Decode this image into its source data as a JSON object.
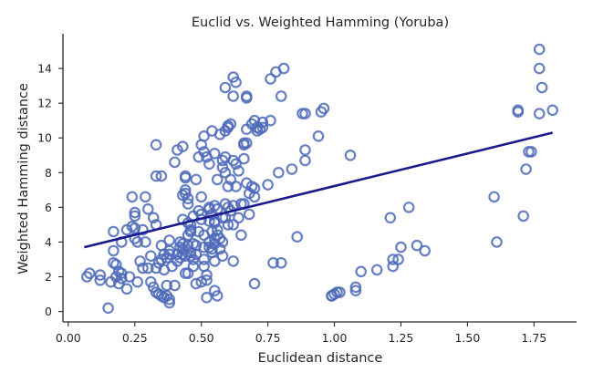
{
  "chart_data": {
    "type": "scatter",
    "title": "Euclid vs. Weighted Hamming (Yoruba)",
    "xlabel": "Euclidean distance",
    "ylabel": "Weighted Hamming distance",
    "xlim": [
      -0.02,
      1.91
    ],
    "ylim": [
      -0.6,
      16.0
    ],
    "xticks": [
      0.0,
      0.25,
      0.5,
      0.75,
      1.0,
      1.25,
      1.5,
      1.75
    ],
    "xtick_labels": [
      "0.00",
      "0.25",
      "0.50",
      "0.75",
      "1.00",
      "1.25",
      "1.50",
      "1.75"
    ],
    "yticks": [
      0,
      2,
      4,
      6,
      8,
      10,
      12,
      14
    ],
    "ytick_labels": [
      "0",
      "2",
      "4",
      "6",
      "8",
      "10",
      "12",
      "14"
    ],
    "grid": false,
    "point_color": "#4c68b8",
    "line_color": "#1a1a8c",
    "points": [
      [
        0.07,
        2.0
      ],
      [
        0.08,
        2.2
      ],
      [
        0.12,
        1.8
      ],
      [
        0.12,
        2.1
      ],
      [
        0.15,
        0.2
      ],
      [
        0.16,
        1.7
      ],
      [
        0.17,
        4.6
      ],
      [
        0.17,
        3.5
      ],
      [
        0.17,
        2.8
      ],
      [
        0.18,
        2.7
      ],
      [
        0.18,
        2.0
      ],
      [
        0.19,
        1.6
      ],
      [
        0.19,
        2.3
      ],
      [
        0.2,
        2.2
      ],
      [
        0.2,
        4.0
      ],
      [
        0.2,
        1.9
      ],
      [
        0.22,
        4.7
      ],
      [
        0.22,
        1.3
      ],
      [
        0.23,
        2.0
      ],
      [
        0.24,
        4.9
      ],
      [
        0.24,
        6.6
      ],
      [
        0.25,
        5.7
      ],
      [
        0.25,
        5.5
      ],
      [
        0.25,
        4.2
      ],
      [
        0.25,
        4.8
      ],
      [
        0.26,
        4.0
      ],
      [
        0.26,
        1.7
      ],
      [
        0.27,
        2.9
      ],
      [
        0.28,
        4.7
      ],
      [
        0.28,
        2.5
      ],
      [
        0.29,
        6.6
      ],
      [
        0.29,
        4.0
      ],
      [
        0.3,
        5.9
      ],
      [
        0.3,
        2.5
      ],
      [
        0.31,
        1.7
      ],
      [
        0.31,
        3.2
      ],
      [
        0.32,
        5.4
      ],
      [
        0.32,
        1.4
      ],
      [
        0.33,
        2.5
      ],
      [
        0.33,
        5.0
      ],
      [
        0.33,
        9.6
      ],
      [
        0.33,
        7.8
      ],
      [
        0.33,
        1.1
      ],
      [
        0.34,
        1.0
      ],
      [
        0.34,
        2.8
      ],
      [
        0.35,
        3.0
      ],
      [
        0.35,
        7.8
      ],
      [
        0.35,
        0.9
      ],
      [
        0.35,
        3.8
      ],
      [
        0.36,
        2.4
      ],
      [
        0.36,
        3.3
      ],
      [
        0.36,
        0.8
      ],
      [
        0.37,
        1.5
      ],
      [
        0.37,
        0.9
      ],
      [
        0.37,
        3.1
      ],
      [
        0.38,
        3.3
      ],
      [
        0.38,
        3.5
      ],
      [
        0.38,
        4.1
      ],
      [
        0.38,
        0.5
      ],
      [
        0.38,
        0.7
      ],
      [
        0.39,
        2.6
      ],
      [
        0.4,
        1.5
      ],
      [
        0.4,
        8.6
      ],
      [
        0.41,
        9.3
      ],
      [
        0.41,
        3.3
      ],
      [
        0.41,
        2.9
      ],
      [
        0.42,
        3.7
      ],
      [
        0.42,
        3.1
      ],
      [
        0.42,
        4.0
      ],
      [
        0.43,
        9.5
      ],
      [
        0.43,
        6.7
      ],
      [
        0.43,
        3.9
      ],
      [
        0.43,
        5.3
      ],
      [
        0.43,
        3.3
      ],
      [
        0.43,
        3.6
      ],
      [
        0.44,
        2.2
      ],
      [
        0.44,
        3.2
      ],
      [
        0.44,
        7.0
      ],
      [
        0.44,
        7.8
      ],
      [
        0.44,
        7.7
      ],
      [
        0.44,
        6.8
      ],
      [
        0.45,
        2.2
      ],
      [
        0.45,
        6.5
      ],
      [
        0.45,
        6.2
      ],
      [
        0.45,
        4.4
      ],
      [
        0.45,
        5.1
      ],
      [
        0.45,
        3.8
      ],
      [
        0.46,
        5.0
      ],
      [
        0.46,
        3.4
      ],
      [
        0.46,
        4.6
      ],
      [
        0.46,
        3.2
      ],
      [
        0.46,
        4.7
      ],
      [
        0.47,
        5.5
      ],
      [
        0.47,
        3.9
      ],
      [
        0.47,
        2.6
      ],
      [
        0.47,
        3.0
      ],
      [
        0.48,
        7.6
      ],
      [
        0.48,
        3.8
      ],
      [
        0.48,
        1.6
      ],
      [
        0.48,
        3.3
      ],
      [
        0.49,
        8.9
      ],
      [
        0.49,
        5.8
      ],
      [
        0.49,
        4.6
      ],
      [
        0.5,
        5.6
      ],
      [
        0.5,
        1.7
      ],
      [
        0.5,
        6.6
      ],
      [
        0.5,
        9.6
      ],
      [
        0.5,
        5.3
      ],
      [
        0.51,
        3.7
      ],
      [
        0.51,
        2.6
      ],
      [
        0.51,
        10.1
      ],
      [
        0.51,
        9.2
      ],
      [
        0.51,
        4.4
      ],
      [
        0.51,
        3.0
      ],
      [
        0.52,
        2.1
      ],
      [
        0.52,
        1.8
      ],
      [
        0.52,
        8.9
      ],
      [
        0.52,
        0.8
      ],
      [
        0.53,
        5.2
      ],
      [
        0.53,
        5.9
      ],
      [
        0.53,
        3.7
      ],
      [
        0.53,
        4.0
      ],
      [
        0.53,
        6.0
      ],
      [
        0.53,
        8.5
      ],
      [
        0.54,
        10.4
      ],
      [
        0.54,
        4.6
      ],
      [
        0.54,
        3.4
      ],
      [
        0.54,
        3.6
      ],
      [
        0.54,
        5.6
      ],
      [
        0.55,
        5.1
      ],
      [
        0.55,
        9.1
      ],
      [
        0.55,
        1.2
      ],
      [
        0.55,
        3.9
      ],
      [
        0.55,
        5.2
      ],
      [
        0.55,
        4.2
      ],
      [
        0.55,
        2.9
      ],
      [
        0.55,
        6.1
      ],
      [
        0.56,
        4.4
      ],
      [
        0.56,
        7.6
      ],
      [
        0.56,
        5.9
      ],
      [
        0.56,
        4.7
      ],
      [
        0.56,
        0.9
      ],
      [
        0.57,
        3.6
      ],
      [
        0.57,
        4.2
      ],
      [
        0.57,
        10.2
      ],
      [
        0.58,
        8.7
      ],
      [
        0.58,
        8.3
      ],
      [
        0.58,
        5.4
      ],
      [
        0.58,
        3.2
      ],
      [
        0.58,
        4.0
      ],
      [
        0.59,
        6.2
      ],
      [
        0.59,
        10.4
      ],
      [
        0.59,
        12.9
      ],
      [
        0.59,
        8.9
      ],
      [
        0.59,
        8.0
      ],
      [
        0.59,
        5.4
      ],
      [
        0.6,
        7.2
      ],
      [
        0.6,
        5.0
      ],
      [
        0.6,
        10.6
      ],
      [
        0.6,
        10.7
      ],
      [
        0.6,
        6.0
      ],
      [
        0.61,
        7.6
      ],
      [
        0.61,
        10.8
      ],
      [
        0.61,
        5.8
      ],
      [
        0.62,
        8.7
      ],
      [
        0.62,
        12.4
      ],
      [
        0.62,
        5.0
      ],
      [
        0.62,
        2.9
      ],
      [
        0.62,
        6.1
      ],
      [
        0.62,
        13.5
      ],
      [
        0.63,
        13.2
      ],
      [
        0.63,
        8.5
      ],
      [
        0.63,
        7.2
      ],
      [
        0.64,
        5.4
      ],
      [
        0.64,
        8.1
      ],
      [
        0.65,
        4.4
      ],
      [
        0.65,
        6.2
      ],
      [
        0.66,
        9.6
      ],
      [
        0.66,
        8.8
      ],
      [
        0.66,
        6.2
      ],
      [
        0.66,
        9.7
      ],
      [
        0.67,
        10.5
      ],
      [
        0.67,
        9.7
      ],
      [
        0.67,
        12.4
      ],
      [
        0.67,
        12.3
      ],
      [
        0.67,
        7.4
      ],
      [
        0.68,
        6.8
      ],
      [
        0.68,
        5.6
      ],
      [
        0.69,
        10.8
      ],
      [
        0.69,
        7.2
      ],
      [
        0.7,
        7.1
      ],
      [
        0.7,
        6.6
      ],
      [
        0.7,
        1.6
      ],
      [
        0.7,
        11.0
      ],
      [
        0.71,
        10.4
      ],
      [
        0.71,
        10.6
      ],
      [
        0.72,
        10.5
      ],
      [
        0.73,
        10.6
      ],
      [
        0.73,
        10.9
      ],
      [
        0.75,
        7.3
      ],
      [
        0.76,
        11.0
      ],
      [
        0.76,
        13.4
      ],
      [
        0.77,
        2.8
      ],
      [
        0.78,
        13.8
      ],
      [
        0.79,
        8.0
      ],
      [
        0.8,
        12.4
      ],
      [
        0.8,
        2.8
      ],
      [
        0.81,
        14.0
      ],
      [
        0.84,
        8.2
      ],
      [
        0.86,
        4.3
      ],
      [
        0.88,
        11.4
      ],
      [
        0.89,
        9.3
      ],
      [
        0.89,
        8.7
      ],
      [
        0.89,
        11.4
      ],
      [
        0.94,
        10.1
      ],
      [
        0.95,
        11.5
      ],
      [
        0.96,
        11.7
      ],
      [
        0.99,
        0.9
      ],
      [
        0.99,
        0.9
      ],
      [
        1.0,
        1.0
      ],
      [
        1.01,
        1.1
      ],
      [
        1.02,
        1.1
      ],
      [
        1.06,
        9.0
      ],
      [
        1.08,
        1.4
      ],
      [
        1.08,
        1.2
      ],
      [
        1.1,
        2.3
      ],
      [
        1.16,
        2.4
      ],
      [
        1.21,
        5.4
      ],
      [
        1.22,
        2.6
      ],
      [
        1.22,
        3.0
      ],
      [
        1.24,
        3.0
      ],
      [
        1.25,
        3.7
      ],
      [
        1.28,
        6.0
      ],
      [
        1.31,
        3.8
      ],
      [
        1.34,
        3.5
      ],
      [
        1.6,
        6.6
      ],
      [
        1.61,
        4.0
      ],
      [
        1.69,
        11.6
      ],
      [
        1.69,
        11.5
      ],
      [
        1.71,
        5.5
      ],
      [
        1.72,
        8.2
      ],
      [
        1.73,
        9.2
      ],
      [
        1.74,
        9.2
      ],
      [
        1.77,
        15.1
      ],
      [
        1.77,
        14.0
      ],
      [
        1.77,
        11.4
      ],
      [
        1.78,
        12.9
      ],
      [
        1.82,
        11.6
      ]
    ],
    "regression_line": {
      "x": [
        0.06,
        1.82
      ],
      "y": [
        3.7,
        10.3
      ]
    }
  }
}
